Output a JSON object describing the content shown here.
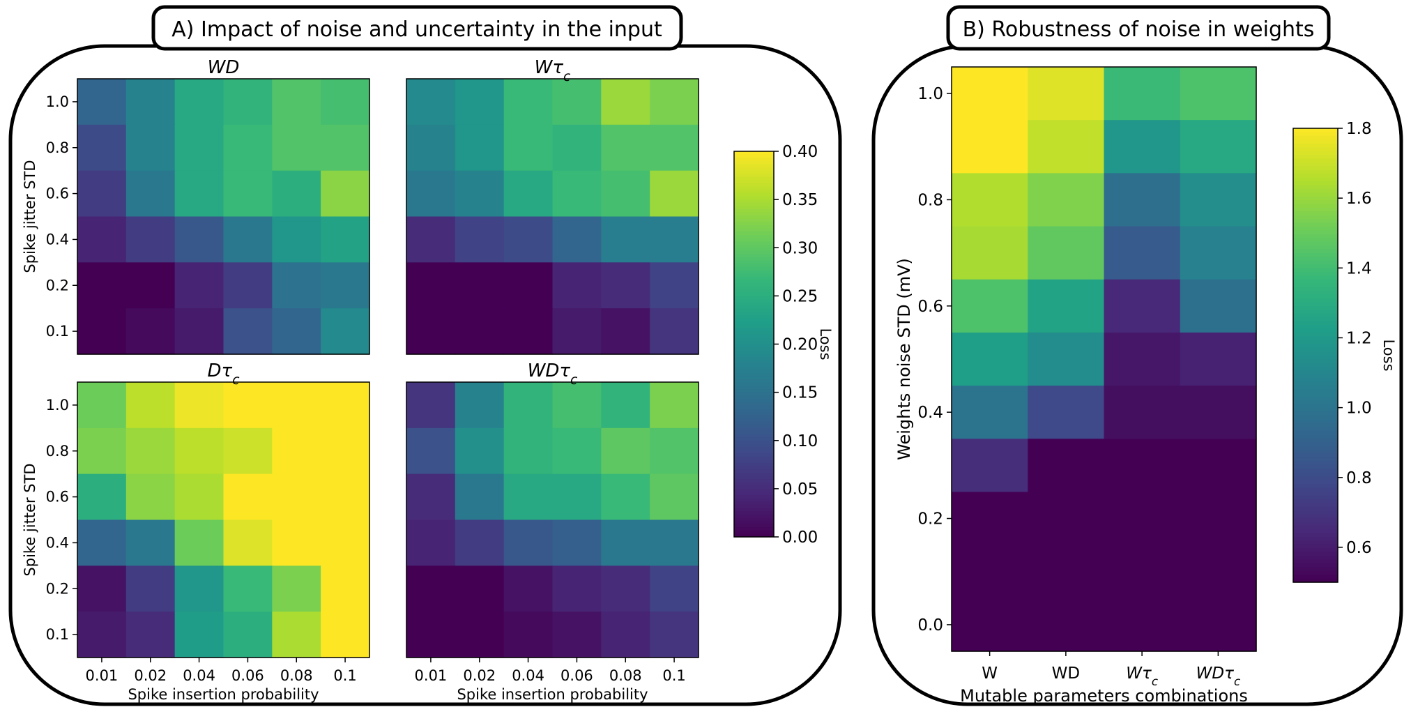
{
  "panels": {
    "a_title": "A) Impact of noise and uncertainty in the input",
    "b_title": "B) Robustness of noise in weights"
  },
  "chart_data": [
    {
      "type": "heatmap",
      "panel": "A",
      "title": "WD",
      "title_parts": [
        {
          "text": "WD",
          "sub": ""
        }
      ],
      "x": [
        "0.01",
        "0.02",
        "0.04",
        "0.06",
        "0.08",
        "0.1"
      ],
      "y": [
        "1.0",
        "0.8",
        "0.6",
        "0.4",
        "0.2",
        "0.1"
      ],
      "xlabel": "",
      "ylabel": "Spike jitter STD",
      "values": [
        [
          0.13,
          0.18,
          0.24,
          0.26,
          0.29,
          0.28
        ],
        [
          0.09,
          0.18,
          0.24,
          0.27,
          0.29,
          0.29
        ],
        [
          0.07,
          0.16,
          0.24,
          0.27,
          0.25,
          0.33
        ],
        [
          0.04,
          0.07,
          0.11,
          0.16,
          0.21,
          0.23
        ],
        [
          0.0,
          0.0,
          0.04,
          0.07,
          0.15,
          0.16
        ],
        [
          0.0,
          0.01,
          0.03,
          0.1,
          0.13,
          0.19
        ]
      ]
    },
    {
      "type": "heatmap",
      "panel": "A",
      "title": "Wτc",
      "title_parts": [
        {
          "text": "Wτ",
          "sub": "c"
        }
      ],
      "x": [
        "0.01",
        "0.02",
        "0.04",
        "0.06",
        "0.08",
        "0.1"
      ],
      "y": [
        "1.0",
        "0.8",
        "0.6",
        "0.4",
        "0.2",
        "0.1"
      ],
      "xlabel": "",
      "ylabel": "",
      "values": [
        [
          0.19,
          0.21,
          0.27,
          0.28,
          0.34,
          0.32
        ],
        [
          0.18,
          0.21,
          0.27,
          0.26,
          0.29,
          0.29
        ],
        [
          0.16,
          0.18,
          0.24,
          0.27,
          0.28,
          0.34
        ],
        [
          0.05,
          0.08,
          0.09,
          0.13,
          0.17,
          0.17
        ],
        [
          0.0,
          0.0,
          0.0,
          0.04,
          0.05,
          0.08
        ],
        [
          0.0,
          0.0,
          0.0,
          0.03,
          0.02,
          0.06
        ]
      ]
    },
    {
      "type": "heatmap",
      "panel": "A",
      "title": "Dτc",
      "title_parts": [
        {
          "text": "Dτ",
          "sub": "c"
        }
      ],
      "x": [
        "0.01",
        "0.02",
        "0.04",
        "0.06",
        "0.08",
        "0.1"
      ],
      "y": [
        "1.0",
        "0.8",
        "0.6",
        "0.4",
        "0.2",
        "0.1"
      ],
      "xlabel": "Spike insertion probability",
      "ylabel": "Spike jitter STD",
      "values": [
        [
          0.31,
          0.36,
          0.39,
          0.4,
          0.4,
          0.4
        ],
        [
          0.32,
          0.34,
          0.36,
          0.37,
          0.4,
          0.4
        ],
        [
          0.25,
          0.33,
          0.35,
          0.4,
          0.4,
          0.4
        ],
        [
          0.13,
          0.16,
          0.31,
          0.38,
          0.4,
          0.4
        ],
        [
          0.02,
          0.07,
          0.21,
          0.27,
          0.32,
          0.4
        ],
        [
          0.03,
          0.05,
          0.22,
          0.25,
          0.35,
          0.4
        ]
      ]
    },
    {
      "type": "heatmap",
      "panel": "A",
      "title": "WDτc",
      "title_parts": [
        {
          "text": "WDτ",
          "sub": "c"
        }
      ],
      "x": [
        "0.01",
        "0.02",
        "0.04",
        "0.06",
        "0.08",
        "0.1"
      ],
      "y": [
        "1.0",
        "0.8",
        "0.6",
        "0.4",
        "0.2",
        "0.1"
      ],
      "xlabel": "Spike insertion probability",
      "ylabel": "",
      "values": [
        [
          0.06,
          0.18,
          0.26,
          0.28,
          0.26,
          0.32
        ],
        [
          0.1,
          0.2,
          0.26,
          0.27,
          0.3,
          0.29
        ],
        [
          0.05,
          0.16,
          0.24,
          0.24,
          0.27,
          0.3
        ],
        [
          0.04,
          0.07,
          0.11,
          0.12,
          0.16,
          0.16
        ],
        [
          0.0,
          0.0,
          0.02,
          0.04,
          0.05,
          0.08
        ],
        [
          0.0,
          0.0,
          0.01,
          0.02,
          0.04,
          0.06
        ]
      ]
    },
    {
      "type": "colorbar",
      "panel": "A",
      "label": "Loss",
      "range": [
        0.0,
        0.4
      ],
      "ticks": [
        "0.00",
        "0.05",
        "0.10",
        "0.15",
        "0.20",
        "0.25",
        "0.30",
        "0.35",
        "0.40"
      ]
    },
    {
      "type": "heatmap",
      "panel": "B",
      "title": "",
      "x_parts": [
        [
          {
            "text": "W",
            "sub": "",
            "italic": false
          }
        ],
        [
          {
            "text": "WD",
            "sub": "",
            "italic": false
          }
        ],
        [
          {
            "text": "Wτ",
            "sub": "c",
            "italic": true
          }
        ],
        [
          {
            "text": "WDτ",
            "sub": "c",
            "italic": true
          }
        ]
      ],
      "x": [
        "W",
        "WD",
        "Wτc",
        "WDτc"
      ],
      "y": [
        "1.0",
        "0.8",
        "0.6",
        "0.4",
        "0.2",
        "0.0"
      ],
      "ylim": [
        -0.05,
        1.05
      ],
      "row_centers": [
        1.0,
        0.9,
        0.8,
        0.7,
        0.6,
        0.5,
        0.4,
        0.3,
        0.2,
        0.1,
        0.0
      ],
      "xlabel": "Mutable parameters combinations",
      "ylabel": "Weights noise STD (mV)",
      "values": [
        [
          1.8,
          1.74,
          1.38,
          1.43
        ],
        [
          1.8,
          1.68,
          1.18,
          1.28
        ],
        [
          1.65,
          1.55,
          0.97,
          1.14
        ],
        [
          1.63,
          1.48,
          0.87,
          1.07
        ],
        [
          1.43,
          1.25,
          0.65,
          0.98
        ],
        [
          1.23,
          1.13,
          0.58,
          0.62
        ],
        [
          1.0,
          0.79,
          0.55,
          0.55
        ],
        [
          0.67,
          0.5,
          0.5,
          0.5
        ],
        [
          0.5,
          0.5,
          0.5,
          0.5
        ],
        [
          0.5,
          0.5,
          0.5,
          0.5
        ],
        [
          0.5,
          0.5,
          0.5,
          0.5
        ]
      ]
    },
    {
      "type": "colorbar",
      "panel": "B",
      "label": "Loss",
      "range": [
        0.5,
        1.8
      ],
      "ticks": [
        "0.6",
        "0.8",
        "1.0",
        "1.2",
        "1.4",
        "1.6",
        "1.8"
      ]
    }
  ]
}
